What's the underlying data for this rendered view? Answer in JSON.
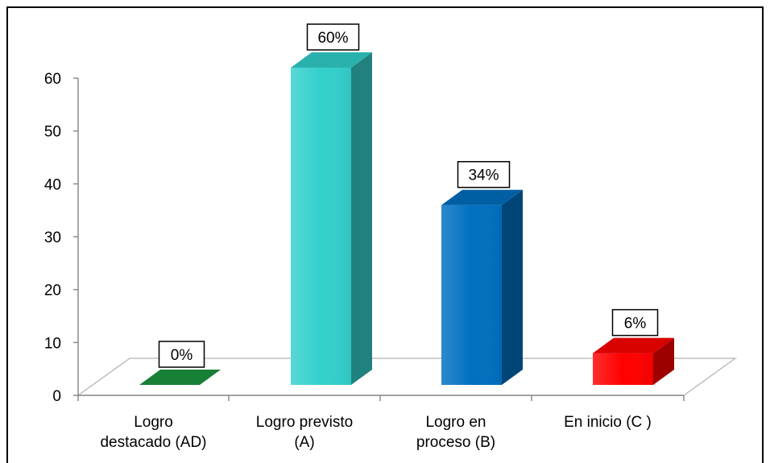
{
  "chart_data": {
    "type": "bar",
    "categories": [
      [
        "Logro",
        "destacado (AD)"
      ],
      [
        "Logro previsto",
        "(A)"
      ],
      [
        "Logro en",
        "proceso (B)"
      ],
      [
        "En inicio (C )"
      ]
    ],
    "values": [
      0,
      60,
      34,
      6
    ],
    "data_labels": [
      "0%",
      "60%",
      "34%",
      "6%"
    ],
    "colors": [
      "#1a8a3c",
      "#33d0cc",
      "#0070c0",
      "#ff0000"
    ],
    "y_ticks": [
      "0",
      "10",
      "20",
      "30",
      "40",
      "50",
      "60"
    ],
    "ylim": [
      0,
      60
    ],
    "title": "",
    "xlabel": "",
    "ylabel": "",
    "legend": "none",
    "grid": false,
    "style": "3d-column"
  }
}
